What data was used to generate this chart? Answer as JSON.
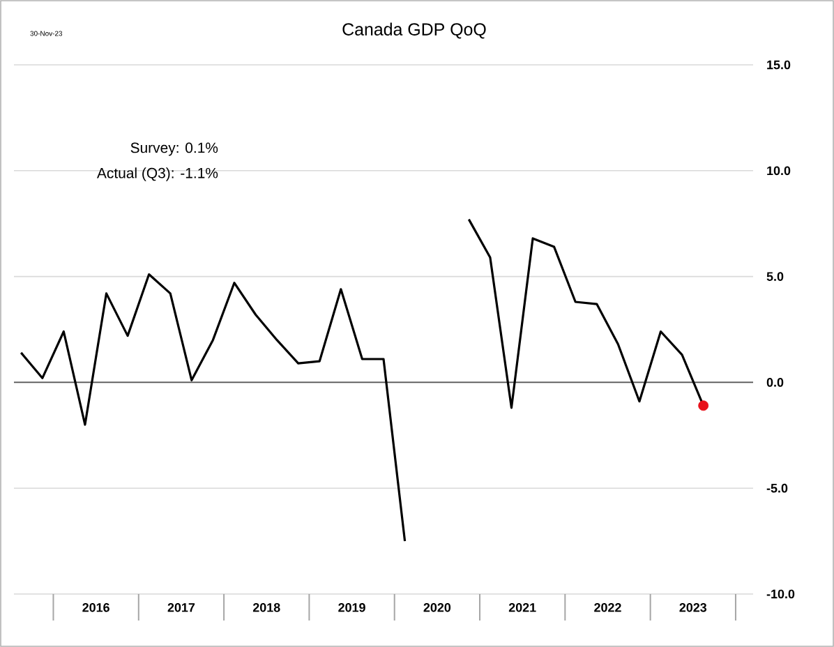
{
  "chart_data": {
    "type": "line",
    "title": "Canada GDP QoQ",
    "annotations": [
      "30-Nov-23",
      "Survey: 0.1%",
      "Actual (Q3): -1.1%"
    ],
    "x": [
      "2015-08-15",
      "2015-11-15",
      "2016-02-15",
      "2016-05-15",
      "2016-08-15",
      "2016-11-15",
      "2017-02-15",
      "2017-05-15",
      "2017-08-15",
      "2017-11-15",
      "2018-02-15",
      "2018-05-15",
      "2018-08-15",
      "2018-11-15",
      "2019-02-15",
      "2019-05-15",
      "2019-08-15",
      "2019-11-15",
      "2020-02-15",
      "2020-05-15",
      "2020-08-15",
      "2020-11-15",
      "2021-02-15",
      "2021-05-15",
      "2021-08-15",
      "2021-11-15",
      "2022-02-15",
      "2022-05-15",
      "2022-08-15",
      "2022-11-15",
      "2023-02-15",
      "2023-05-15",
      "2023-08-15"
    ],
    "series": [
      {
        "color": "#000000",
        "values": [
          1.4,
          0.2,
          2.4,
          -2.0,
          4.2,
          2.2,
          5.1,
          4.2,
          0.1,
          2.0,
          4.7,
          3.2,
          2.0,
          0.9,
          1.0,
          4.4,
          1.1,
          1.1,
          -7.5,
          null,
          null,
          7.7,
          5.9,
          -1.2,
          6.8,
          6.4,
          3.8,
          3.7,
          1.8,
          -0.9,
          2.4,
          1.3,
          -1.1
        ]
      },
      {
        "type": "scatter",
        "color": "#e8111a",
        "x": [
          "2023-08-15"
        ],
        "values": [
          -1.1
        ]
      }
    ],
    "xlim": [
      "2015-07-15",
      "2024-03-15"
    ],
    "xticks": [
      {
        "value": "2016-07-01",
        "label": "2016"
      },
      {
        "value": "2017-07-01",
        "label": "2017"
      },
      {
        "value": "2018-07-01",
        "label": "2018"
      },
      {
        "value": "2019-07-01",
        "label": "2019"
      },
      {
        "value": "2020-07-01",
        "label": "2020"
      },
      {
        "value": "2021-07-01",
        "label": "2021"
      },
      {
        "value": "2022-07-01",
        "label": "2022"
      },
      {
        "value": "2023-07-01",
        "label": "2023"
      }
    ],
    "ylim": [
      -10,
      15
    ],
    "yticks": [
      {
        "value": -10,
        "label": "-10.0"
      },
      {
        "value": -5,
        "label": "-5.0"
      },
      {
        "value": 0,
        "label": "0.0"
      },
      {
        "value": 5,
        "label": "5.0"
      },
      {
        "value": 10,
        "label": "10.0"
      },
      {
        "value": 15,
        "label": "15.0"
      }
    ],
    "grid": "y",
    "ref_lines": [
      {
        "axis": "y",
        "value": 0,
        "color": "#555555"
      }
    ]
  }
}
